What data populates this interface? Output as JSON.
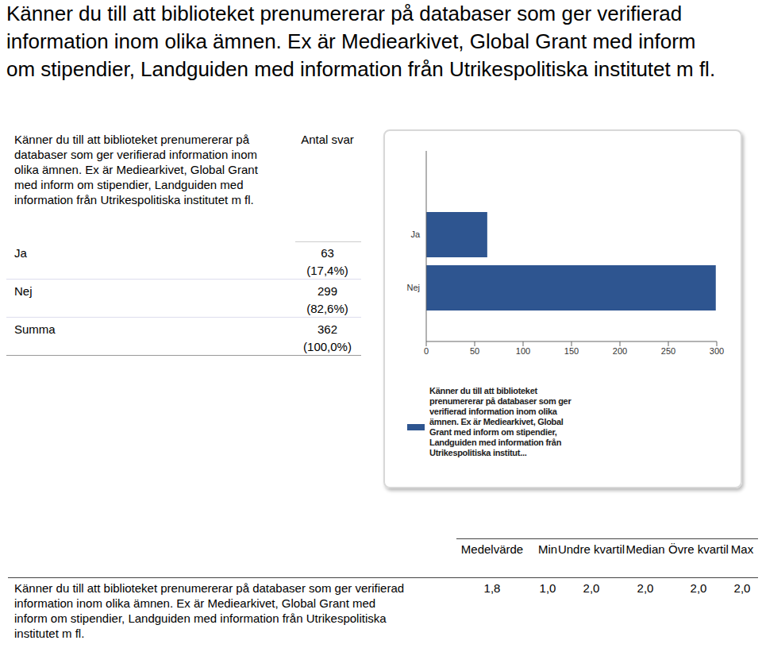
{
  "heading": "Känner du till att biblioteket prenumererar på databaser som ger verifierad information inom olika ämnen. Ex är Mediearkivet, Global Grant med inform om stipendier, Landguiden med information från Utrikespolitiska institutet m fl.",
  "table": {
    "header": [
      "Känner du till att biblioteket prenumererar på databaser som ger verifierad information inom olika ämnen. Ex är Mediearkivet, Global Grant med inform om stipendier, Landguiden med information från Utrikespolitiska institutet m fl.",
      "Antal svar"
    ],
    "rows": [
      [
        "Ja",
        "63",
        "(17,4%)"
      ],
      [
        "Nej",
        "299",
        "(82,6%)"
      ],
      [
        "Summa",
        "362",
        "(100,0%)"
      ]
    ]
  },
  "chart_data": {
    "type": "bar",
    "orientation": "horizontal",
    "categories": [
      "Ja",
      "Nej"
    ],
    "series": [
      {
        "name": "Känner du till att biblioteket prenumererar på databaser som ger verifierad information inom olika ämnen. Ex är Mediearkivet, Global Grant med inform om stipendier, Landguiden med information från Utrikespolitiska institut...",
        "color": "#2e5590",
        "values": [
          63,
          299
        ]
      }
    ],
    "xlim": [
      0,
      300
    ],
    "xticks": [
      0,
      50,
      100,
      150,
      200,
      250,
      300
    ],
    "grid": false
  },
  "stats": {
    "columns": [
      "Medelvärde",
      "Min",
      "Undre kvartil",
      "Median",
      "Övre kvartil",
      "Max"
    ],
    "rows": [
      {
        "label": "Känner du till att biblioteket prenumererar på databaser som ger verifierad information inom olika ämnen. Ex är Mediearkivet, Global Grant med inform om stipendier, Landguiden med information från Utrikespolitiska institutet m fl.",
        "values": [
          "1,8",
          "1,0",
          "2,0",
          "2,0",
          "2,0",
          "2,0"
        ]
      }
    ]
  }
}
